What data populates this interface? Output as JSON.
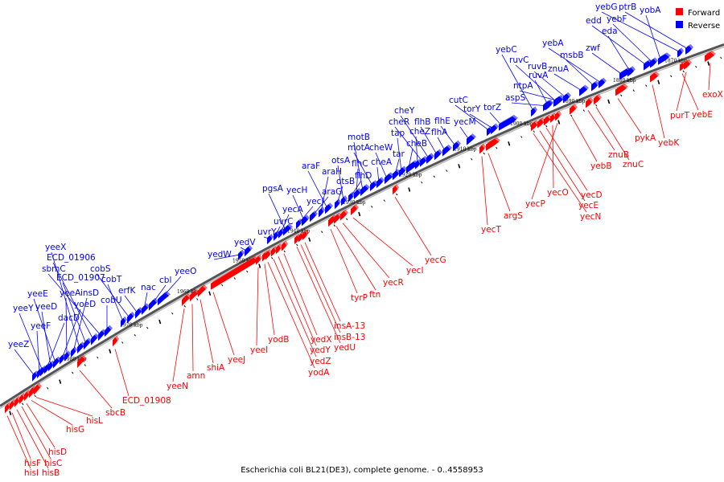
{
  "caption": "Escherichia coli BL21(DE3), complete genome. - 0..4558953",
  "legend": {
    "forward": {
      "label": "Forward",
      "color": "#ff0000"
    },
    "reverse": {
      "label": "Reverse",
      "color": "#0000ff"
    }
  },
  "colors": {
    "forward": "#ff0000",
    "reverse": "#0000ff",
    "backbone": "#909090",
    "tick": "#000000"
  },
  "kbp_ticks": [
    "1870 kbp",
    "1880 kbp",
    "1890 kbp",
    "1900 kbp",
    "1910 kbp",
    "1920 kbp",
    "1930 kbp",
    "1940 kbp",
    "1950 kbp",
    "1960 kbp",
    "1970 kbp",
    "1980 kbp"
  ],
  "forward_genes": [
    "exoX",
    "purT",
    "yebE",
    "yebK",
    "pykA",
    "znuC",
    "znuB",
    "yebB",
    "yecD",
    "yecE",
    "yecN",
    "yecO",
    "yecP",
    "argS",
    "yecT",
    "yecG",
    "yecI",
    "yecR",
    "ftn",
    "tyrP",
    "insA-13",
    "insB-13",
    "yedU",
    "yedX",
    "yedY",
    "yedZ",
    "yodA",
    "yodB",
    "yeeI",
    "yeeJ",
    "shiA",
    "amn",
    "yeeN",
    "ECD_01908",
    "sbcB",
    "hisL",
    "hisG",
    "hisD",
    "hisC",
    "hisB",
    "hisF",
    "hisI"
  ],
  "reverse_genes": [
    "yebG",
    "ptrB",
    "yobA",
    "edd",
    "yebF",
    "eda",
    "zwf",
    "yebA",
    "msbB",
    "znuA",
    "ruvB",
    "ruvC",
    "ruvA",
    "yebC",
    "ntpA",
    "aspS",
    "torZ",
    "torY",
    "cutC",
    "yecM",
    "flhE",
    "flhA",
    "flhB",
    "cheY",
    "cheR",
    "cheZ",
    "cheB",
    "tap",
    "tar",
    "cheW",
    "cheA",
    "motA",
    "motB",
    "flhC",
    "flhD",
    "otsA",
    "otsB",
    "araF",
    "araH",
    "araG",
    "yecH",
    "yecJ",
    "pgsA",
    "yecA",
    "uvrC",
    "uvrY",
    "yedV",
    "yedW",
    "yeeO",
    "cbl",
    "nac",
    "erfK",
    "cobS",
    "cobT",
    "cobU",
    "sbmC",
    "ECD_01906",
    "ECD_01907",
    "yeeX",
    "insD",
    "yeeA",
    "yoeD",
    "yeeE",
    "yeeD",
    "dacD",
    "yeeY",
    "yeeF",
    "yeeZ"
  ]
}
